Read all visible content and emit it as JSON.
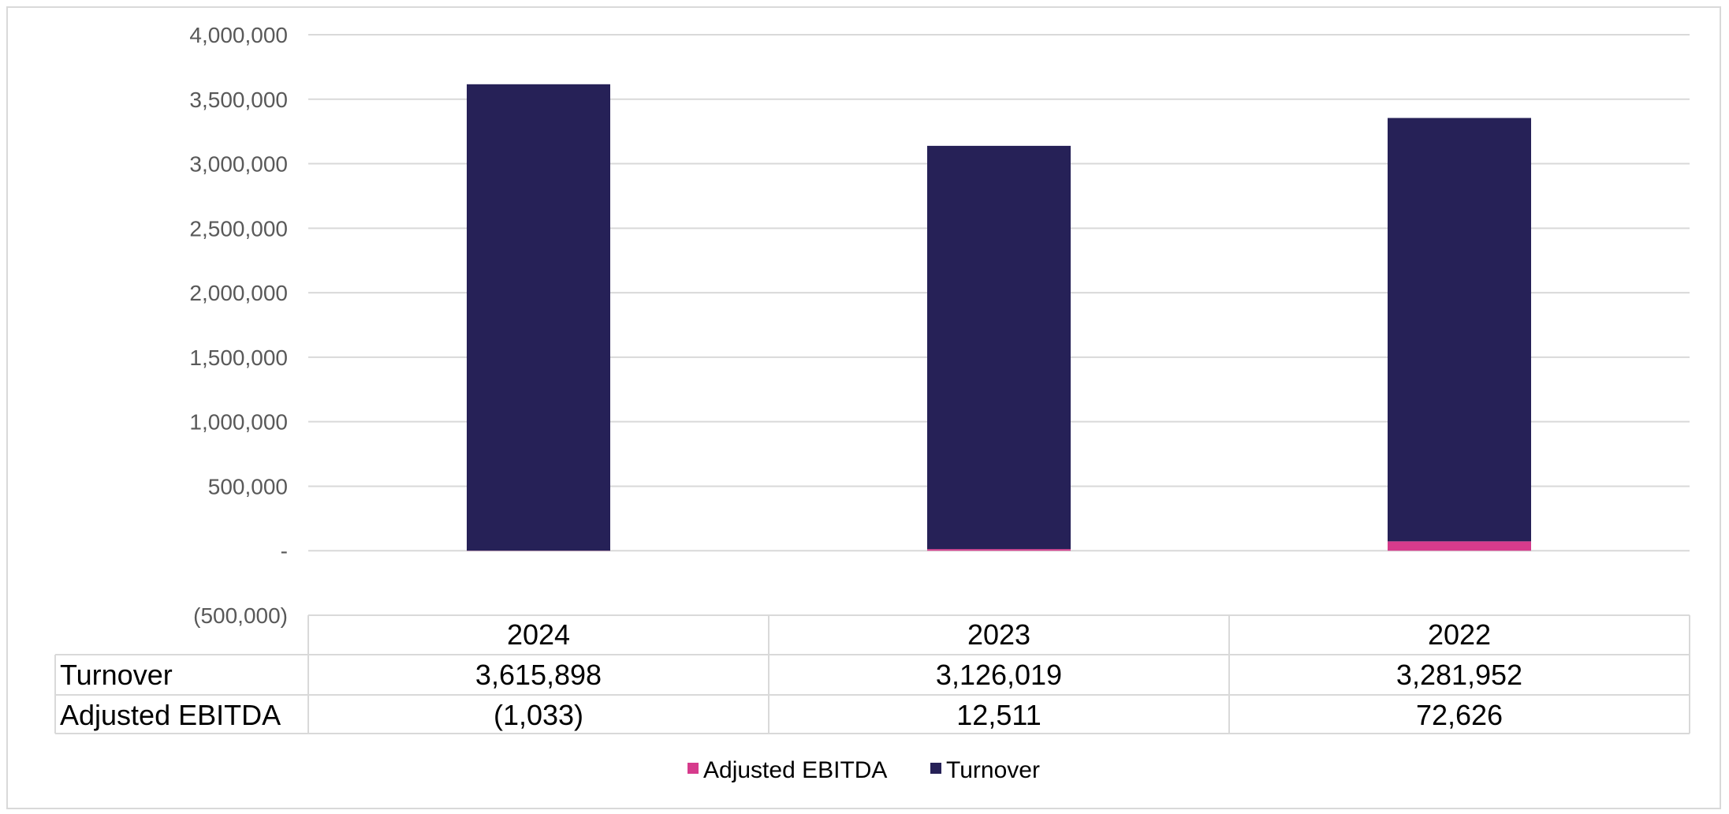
{
  "chart_data": {
    "type": "bar",
    "stacked": true,
    "categories": [
      "2024",
      "2023",
      "2022"
    ],
    "series": [
      {
        "name": "Turnover",
        "values": [
          3615898,
          3126019,
          3281952
        ],
        "color": "#262157",
        "display": [
          "3,615,898",
          "3,126,019",
          "3,281,952"
        ]
      },
      {
        "name": "Adjusted EBITDA",
        "values": [
          -1033,
          12511,
          72626
        ],
        "color": "#d63b8c",
        "display": [
          "(1,033)",
          "12,511",
          "72,626"
        ]
      }
    ],
    "ylim": [
      -500000,
      4000000
    ],
    "yticks": [
      -500000,
      0,
      500000,
      1000000,
      1500000,
      2000000,
      2500000,
      3000000,
      3500000,
      4000000
    ],
    "ytick_labels": [
      "(500,000)",
      "-",
      "500,000",
      "1,000,000",
      "1,500,000",
      "2,000,000",
      "2,500,000",
      "3,000,000",
      "3,500,000",
      "4,000,000"
    ],
    "grid": true,
    "data_table": true,
    "legend": {
      "position": "bottom",
      "entries": [
        "Adjusted EBITDA",
        "Turnover"
      ]
    }
  }
}
